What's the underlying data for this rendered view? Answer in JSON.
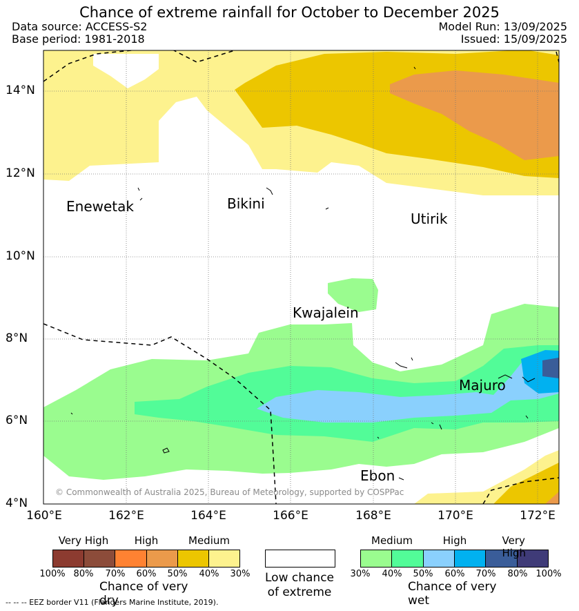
{
  "header": {
    "title": "Chance of extreme rainfall for October to December 2025",
    "data_source": "Data source: ACCESS-S2",
    "base_period": "Base period: 1981-2018",
    "model_run": "Model Run: 13/09/2025",
    "issued": "Issued: 15/09/2025"
  },
  "map": {
    "lat_labels": [
      "14°N",
      "12°N",
      "10°N",
      "8°N",
      "6°N",
      "4°N"
    ],
    "lon_labels": [
      "160°E",
      "162°E",
      "164°E",
      "166°E",
      "168°E",
      "170°E",
      "172°E"
    ],
    "places": [
      "Enewetak",
      "Bikini",
      "Utirik",
      "Kwajalein",
      "Majuro",
      "Ebon"
    ],
    "copyright": "© Commonwealth of Australia 2025, Bureau of Meteorology, supported by COSPPac"
  },
  "legend_dry": {
    "levels": [
      "Very High",
      "High",
      "Medium"
    ],
    "colors": [
      "#8c3b30",
      "#8c4c3a",
      "#ff8232",
      "#eb9a4b",
      "#ecc600",
      "#fdf28e"
    ],
    "ticks": [
      "100%",
      "80%",
      "70%",
      "60%",
      "50%",
      "40%",
      "30%"
    ],
    "title": "Chance of very dry"
  },
  "legend_low": {
    "line1": "Low chance",
    "line2": "of extreme"
  },
  "legend_wet": {
    "levels": [
      "Medium",
      "High",
      "Very High"
    ],
    "colors": [
      "#9afc8f",
      "#52fc98",
      "#8ad0fd",
      "#01b1f0",
      "#3a5d99",
      "#3f3b78"
    ],
    "ticks": [
      "30%",
      "40%",
      "50%",
      "60%",
      "70%",
      "80%",
      "100%"
    ],
    "title": "Chance of very wet"
  },
  "footer": {
    "eez_note": "--  --  -- EEZ border V11 (Flanders Marine Institute, 2019)."
  }
}
